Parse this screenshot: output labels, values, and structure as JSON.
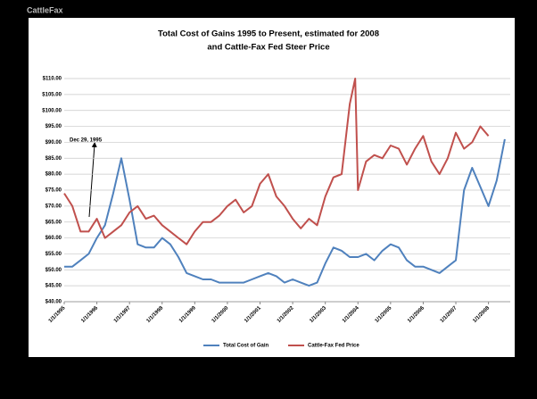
{
  "brand": "CattleFax",
  "chart_data": {
    "type": "line",
    "title": "Total  Cost of Gains 1995 to Present, estimated for 2008",
    "subtitle": "and Cattle-Fax Fed Steer Price",
    "annotation": "Dec 29, 1995",
    "x": [
      "1995-01",
      "1995-04",
      "1995-07",
      "1995-10",
      "1996-01",
      "1996-04",
      "1996-07",
      "1996-10",
      "1997-01",
      "1997-04",
      "1997-07",
      "1997-10",
      "1998-01",
      "1998-04",
      "1998-07",
      "1998-10",
      "1999-01",
      "1999-04",
      "1999-07",
      "1999-10",
      "2000-01",
      "2000-04",
      "2000-07",
      "2000-10",
      "2001-01",
      "2001-04",
      "2001-07",
      "2001-10",
      "2002-01",
      "2002-04",
      "2002-07",
      "2002-10",
      "2003-01",
      "2003-04",
      "2003-07",
      "2003-10",
      "2003-12",
      "2004-01",
      "2004-04",
      "2004-07",
      "2004-10",
      "2005-01",
      "2005-04",
      "2005-07",
      "2005-10",
      "2006-01",
      "2006-04",
      "2006-07",
      "2006-10",
      "2007-01",
      "2007-04",
      "2007-07",
      "2007-10",
      "2008-01",
      "2008-04",
      "2008-07"
    ],
    "series": [
      {
        "name": "Total Cost of Gain",
        "color": "#4f81bd",
        "values": [
          51,
          51,
          53,
          55,
          60,
          64,
          74,
          85,
          72,
          58,
          57,
          57,
          60,
          58,
          54,
          49,
          48,
          47,
          47,
          46,
          46,
          46,
          46,
          47,
          48,
          49,
          48,
          46,
          47,
          46,
          45,
          46,
          52,
          57,
          56,
          54,
          54,
          54,
          55,
          53,
          56,
          58,
          57,
          53,
          51,
          51,
          50,
          49,
          51,
          53,
          75,
          82,
          76,
          70,
          78,
          91
        ]
      },
      {
        "name": "Cattle-Fax Fed Price",
        "color": "#c0504d",
        "values": [
          74,
          70,
          62,
          62,
          66,
          60,
          62,
          64,
          68,
          70,
          66,
          67,
          64,
          62,
          60,
          58,
          62,
          65,
          65,
          67,
          70,
          72,
          68,
          70,
          77,
          80,
          73,
          70,
          66,
          63,
          66,
          64,
          73,
          79,
          80,
          102,
          110,
          75,
          84,
          86,
          85,
          89,
          88,
          83,
          88,
          92,
          84,
          80,
          85,
          93,
          88,
          90,
          95,
          92,
          null,
          null
        ]
      }
    ],
    "xlim": [
      "1995-01",
      "2008-09"
    ],
    "xticks": [
      {
        "value": "1995-01",
        "label": "1/1/1995"
      },
      {
        "value": "1996-01",
        "label": "1/1/1996"
      },
      {
        "value": "1997-01",
        "label": "1/1/1997"
      },
      {
        "value": "1998-01",
        "label": "1/1/1998"
      },
      {
        "value": "1999-01",
        "label": "1/1/1999"
      },
      {
        "value": "2000-01",
        "label": "1/1/2000"
      },
      {
        "value": "2001-01",
        "label": "1/1/2001"
      },
      {
        "value": "2002-01",
        "label": "1/1/2002"
      },
      {
        "value": "2003-01",
        "label": "1/1/2003"
      },
      {
        "value": "2004-01",
        "label": "1/1/2004"
      },
      {
        "value": "2005-01",
        "label": "1/1/2005"
      },
      {
        "value": "2006-01",
        "label": "1/1/2006"
      },
      {
        "value": "2007-01",
        "label": "1/1/2007"
      },
      {
        "value": "2008-01",
        "label": "1/1/2008"
      }
    ],
    "ylim": [
      40,
      110
    ],
    "yticks": [
      {
        "value": 40,
        "label": "$40.00"
      },
      {
        "value": 45,
        "label": "$45.00"
      },
      {
        "value": 50,
        "label": "$50.00"
      },
      {
        "value": 55,
        "label": "$55.00"
      },
      {
        "value": 60,
        "label": "$60.00"
      },
      {
        "value": 65,
        "label": "$65.00"
      },
      {
        "value": 70,
        "label": "$70.00"
      },
      {
        "value": 75,
        "label": "$75.00"
      },
      {
        "value": 80,
        "label": "$80.00"
      },
      {
        "value": 85,
        "label": "$85.00"
      },
      {
        "value": 90,
        "label": "$90.00"
      },
      {
        "value": 95,
        "label": "$95.00"
      },
      {
        "value": 100,
        "label": "$100.00"
      },
      {
        "value": 105,
        "label": "$105.00"
      },
      {
        "value": 110,
        "label": "$110.00"
      }
    ],
    "grid": true
  }
}
